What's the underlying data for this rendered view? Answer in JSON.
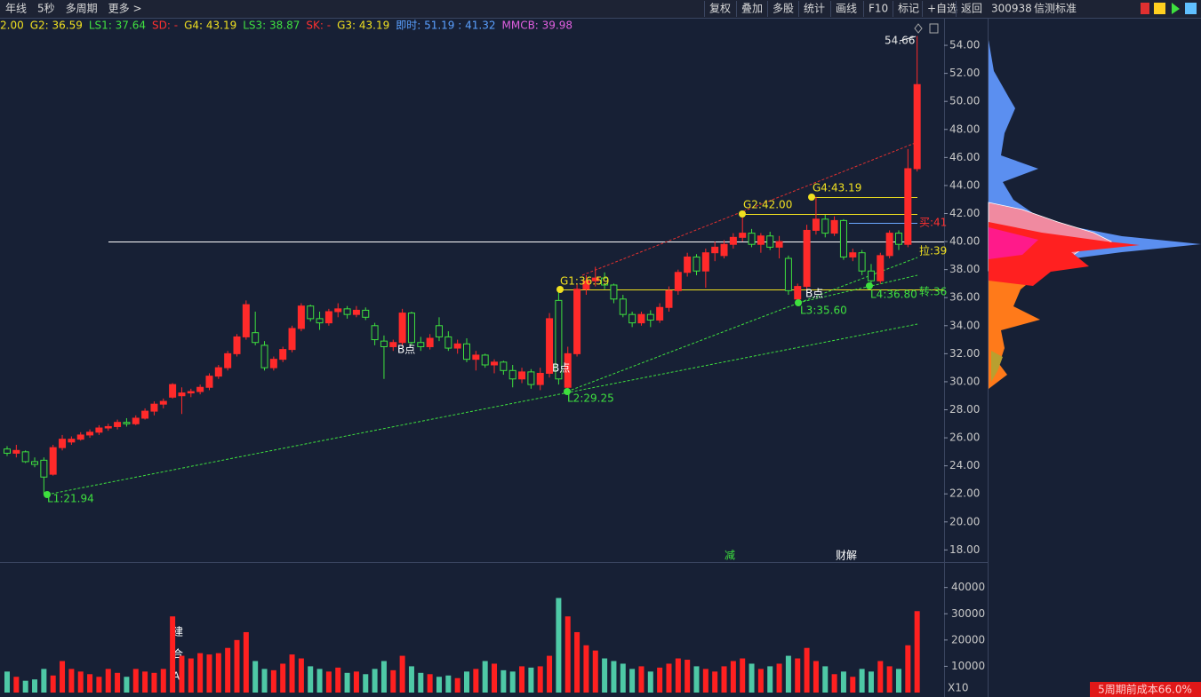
{
  "toolbar": {
    "left": [
      "年线",
      "5秒",
      "多周期",
      "更多 >"
    ],
    "right": [
      "复权",
      "叠加",
      "多股",
      "统计",
      "画线",
      "F10",
      "标记",
      "+自选",
      "返回"
    ]
  },
  "stock": {
    "code": "300938",
    "name": "信测标准"
  },
  "indicators": [
    {
      "label": "2.00",
      "color": "#f0e020"
    },
    {
      "label": "G2: 36.59",
      "color": "#f0e020"
    },
    {
      "label": "LS1: 37.64",
      "color": "#40e040"
    },
    {
      "label": "SD: -",
      "color": "#ff3030"
    },
    {
      "label": "G4: 43.19",
      "color": "#f0e020"
    },
    {
      "label": "LS3: 38.87",
      "color": "#40e040"
    },
    {
      "label": "SK: -",
      "color": "#ff3030"
    },
    {
      "label": "G3: 43.19",
      "color": "#f0e020"
    },
    {
      "label": "即时: 51.19 : 41.32",
      "color": "#5aa0ff"
    },
    {
      "label": "MMCB: 39.98",
      "color": "#e060e0"
    }
  ],
  "footer": "5周期前成本66.0%",
  "chart_data": [
    {
      "type": "candlestick",
      "up_color": "#ff2a2a",
      "down_color": "#3ee03e",
      "ylim": [
        17.2,
        54.7
      ],
      "yticks": [
        {
          "value": 18,
          "label": "18.00"
        },
        {
          "value": 20,
          "label": "20.00"
        },
        {
          "value": 22,
          "label": "22.00"
        },
        {
          "value": 24,
          "label": "24.00"
        },
        {
          "value": 26,
          "label": "26.00"
        },
        {
          "value": 28,
          "label": "28.00"
        },
        {
          "value": 30,
          "label": "30.00"
        },
        {
          "value": 32,
          "label": "32.00"
        },
        {
          "value": 34,
          "label": "34.00"
        },
        {
          "value": 36,
          "label": "36.00"
        },
        {
          "value": 38,
          "label": "38.00"
        },
        {
          "value": 40,
          "label": "40.00"
        },
        {
          "value": 42,
          "label": "42.00"
        },
        {
          "value": 44,
          "label": "44.00"
        },
        {
          "value": 46,
          "label": "46.00"
        },
        {
          "value": 48,
          "label": "48.00"
        },
        {
          "value": 50,
          "label": "50.00"
        },
        {
          "value": 52,
          "label": "52.00"
        },
        {
          "value": 54,
          "label": "54.00"
        }
      ],
      "candles": [
        [
          25.2,
          25.4,
          24.7,
          24.9
        ],
        [
          24.9,
          25.5,
          24.6,
          25.1
        ],
        [
          25.0,
          25.1,
          24.2,
          24.3
        ],
        [
          24.3,
          24.6,
          23.9,
          24.1
        ],
        [
          24.4,
          24.6,
          21.94,
          23.2
        ],
        [
          23.4,
          25.5,
          23.3,
          25.3
        ],
        [
          25.3,
          26.2,
          25.1,
          25.9
        ],
        [
          25.7,
          26.1,
          25.5,
          25.9
        ],
        [
          25.9,
          26.4,
          25.8,
          26.2
        ],
        [
          26.2,
          26.6,
          26.0,
          26.4
        ],
        [
          26.4,
          26.9,
          26.2,
          26.7
        ],
        [
          26.7,
          27.0,
          26.5,
          26.8
        ],
        [
          26.8,
          27.3,
          26.6,
          27.1
        ],
        [
          27.1,
          27.4,
          26.8,
          27.0
        ],
        [
          27.0,
          27.6,
          26.9,
          27.4
        ],
        [
          27.4,
          28.1,
          27.3,
          27.9
        ],
        [
          27.9,
          28.6,
          27.6,
          28.4
        ],
        [
          28.4,
          28.8,
          28.1,
          28.6
        ],
        [
          28.9,
          29.9,
          28.8,
          29.8
        ],
        [
          29.0,
          29.6,
          27.7,
          29.2
        ],
        [
          29.2,
          29.5,
          28.9,
          29.3
        ],
        [
          29.3,
          29.8,
          29.1,
          29.6
        ],
        [
          29.6,
          30.6,
          29.4,
          30.4
        ],
        [
          30.4,
          31.2,
          30.2,
          31.0
        ],
        [
          31.0,
          32.2,
          30.8,
          32.0
        ],
        [
          32.0,
          33.4,
          31.8,
          33.2
        ],
        [
          33.2,
          35.8,
          33.0,
          35.5
        ],
        [
          33.5,
          35.0,
          32.6,
          32.8
        ],
        [
          32.6,
          32.9,
          30.8,
          31.0
        ],
        [
          31.0,
          31.8,
          30.8,
          31.6
        ],
        [
          31.6,
          32.5,
          31.4,
          32.3
        ],
        [
          32.3,
          34.0,
          32.1,
          33.8
        ],
        [
          33.8,
          35.6,
          33.6,
          35.4
        ],
        [
          35.4,
          35.5,
          34.3,
          34.5
        ],
        [
          34.5,
          35.0,
          33.7,
          34.2
        ],
        [
          34.2,
          35.2,
          34.0,
          35.0
        ],
        [
          35.0,
          35.6,
          34.6,
          35.2
        ],
        [
          35.2,
          35.4,
          34.5,
          34.8
        ],
        [
          34.8,
          35.4,
          34.6,
          35.1
        ],
        [
          35.1,
          35.3,
          34.4,
          34.6
        ],
        [
          34.0,
          34.2,
          32.6,
          33.0
        ],
        [
          32.9,
          33.3,
          30.2,
          32.5
        ],
        [
          32.5,
          33.0,
          32.2,
          32.8
        ],
        [
          32.8,
          35.2,
          32.6,
          34.9
        ],
        [
          34.9,
          35.0,
          32.6,
          32.8
        ],
        [
          32.8,
          33.2,
          32.2,
          32.5
        ],
        [
          32.5,
          33.4,
          32.3,
          33.1
        ],
        [
          34.0,
          34.6,
          32.9,
          33.2
        ],
        [
          33.2,
          33.6,
          32.2,
          32.4
        ],
        [
          32.4,
          33.0,
          32.0,
          32.7
        ],
        [
          32.7,
          33.1,
          31.4,
          31.6
        ],
        [
          31.6,
          32.2,
          30.8,
          31.9
        ],
        [
          31.9,
          32.0,
          31.0,
          31.2
        ],
        [
          31.2,
          31.6,
          30.6,
          31.4
        ],
        [
          31.4,
          31.5,
          30.5,
          30.8
        ],
        [
          30.8,
          31.2,
          29.6,
          30.2
        ],
        [
          30.2,
          31.0,
          29.9,
          30.7
        ],
        [
          30.7,
          30.9,
          29.5,
          29.8
        ],
        [
          29.8,
          31.0,
          29.4,
          30.6
        ],
        [
          30.6,
          34.9,
          30.3,
          34.5
        ],
        [
          35.8,
          36.59,
          29.8,
          30.2
        ],
        [
          29.6,
          32.5,
          29.25,
          32.0
        ],
        [
          32.0,
          37.0,
          31.8,
          36.6
        ],
        [
          36.6,
          37.6,
          36.2,
          37.2
        ],
        [
          37.2,
          38.2,
          36.8,
          37.4
        ],
        [
          37.4,
          37.8,
          36.6,
          36.9
        ],
        [
          36.9,
          37.0,
          35.6,
          35.9
        ],
        [
          35.9,
          36.2,
          34.6,
          34.8
        ],
        [
          34.8,
          35.0,
          33.9,
          34.2
        ],
        [
          34.2,
          35.0,
          34.0,
          34.8
        ],
        [
          34.8,
          35.1,
          33.9,
          34.4
        ],
        [
          34.4,
          35.6,
          34.2,
          35.3
        ],
        [
          35.3,
          36.8,
          35.0,
          36.5
        ],
        [
          36.5,
          38.0,
          36.2,
          37.8
        ],
        [
          37.8,
          39.2,
          37.5,
          38.9
        ],
        [
          38.9,
          39.1,
          37.6,
          37.9
        ],
        [
          37.9,
          39.5,
          36.7,
          39.2
        ],
        [
          39.2,
          40.0,
          38.6,
          39.6
        ],
        [
          39.0,
          40.1,
          38.8,
          39.8
        ],
        [
          39.8,
          40.6,
          39.5,
          40.3
        ],
        [
          40.3,
          42.0,
          40.0,
          40.6
        ],
        [
          40.6,
          40.9,
          39.6,
          39.8
        ],
        [
          39.8,
          40.6,
          39.2,
          40.4
        ],
        [
          40.4,
          40.7,
          39.4,
          39.6
        ],
        [
          39.6,
          40.4,
          38.8,
          40.0
        ],
        [
          38.8,
          39.0,
          36.2,
          36.5
        ],
        [
          35.9,
          37.0,
          35.6,
          36.8
        ],
        [
          36.8,
          41.2,
          36.6,
          40.8
        ],
        [
          40.8,
          43.19,
          40.5,
          41.6
        ],
        [
          41.6,
          41.9,
          40.3,
          40.6
        ],
        [
          40.6,
          41.8,
          40.4,
          41.5
        ],
        [
          41.5,
          41.6,
          38.7,
          38.9
        ],
        [
          38.9,
          39.5,
          38.6,
          39.2
        ],
        [
          39.2,
          39.4,
          37.6,
          37.9
        ],
        [
          37.9,
          38.4,
          36.8,
          37.2
        ],
        [
          37.2,
          39.2,
          37.0,
          39.0
        ],
        [
          39.0,
          40.8,
          38.8,
          40.6
        ],
        [
          40.6,
          40.8,
          39.4,
          39.8
        ],
        [
          39.8,
          46.6,
          39.6,
          45.2
        ],
        [
          45.2,
          54.66,
          45.0,
          51.2
        ]
      ],
      "annotations": [
        "54.66",
        "G1:36.59",
        "G2:42.00",
        "G4:43.19",
        "L1:21.94",
        "L2:29.25",
        "L3:35.60",
        "L4:36.80",
        "B点",
        "B点",
        "B点",
        "买:41",
        "拉:39",
        "转:36",
        "减",
        "财解",
        "建",
        "合",
        "A"
      ]
    },
    {
      "type": "bar",
      "ylim": [
        0,
        48000
      ],
      "yticks": [
        10000,
        20000,
        30000,
        40000
      ],
      "unit_label": "X10",
      "values": [
        8000,
        6000,
        4500,
        5000,
        9000,
        6500,
        12000,
        9000,
        8000,
        7000,
        6000,
        9000,
        7500,
        6000,
        9000,
        8000,
        7500,
        9000,
        29000,
        14000,
        13000,
        15000,
        14500,
        15000,
        17000,
        20000,
        23000,
        12000,
        9000,
        8500,
        11000,
        14500,
        13000,
        10000,
        9000,
        8000,
        9500,
        7500,
        8000,
        7000,
        9000,
        12000,
        8500,
        14000,
        10000,
        7500,
        7000,
        6000,
        6500,
        5500,
        8000,
        9000,
        12000,
        11000,
        8500,
        8000,
        10000,
        9500,
        10000,
        14000,
        36000,
        29000,
        23000,
        18000,
        16000,
        13000,
        12000,
        11000,
        9000,
        10000,
        8000,
        9500,
        11000,
        13000,
        12500,
        10000,
        9000,
        8000,
        10000,
        12000,
        13000,
        11000,
        9000,
        10000,
        11000,
        14000,
        13000,
        17000,
        12000,
        10000,
        7000,
        8000,
        6000,
        9000,
        8000,
        12000,
        10000,
        9000,
        18000,
        31000
      ]
    }
  ]
}
